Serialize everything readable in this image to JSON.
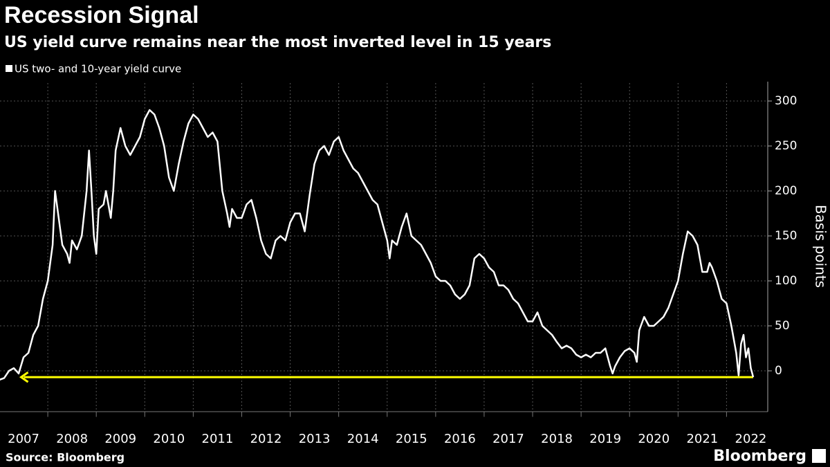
{
  "chart_data": {
    "type": "line",
    "title": "Recession Signal",
    "subtitle": "US yield curve remains near the most inverted level in 15 years",
    "y_axis_label": "Basis points",
    "source": "Source: Bloomberg",
    "logo": "Bloomberg",
    "grid": true,
    "xlim": [
      2007,
      2022.85
    ],
    "xticks": [
      2007,
      2008,
      2009,
      2010,
      2011,
      2012,
      2013,
      2014,
      2015,
      2016,
      2017,
      2018,
      2019,
      2020,
      2021,
      2022
    ],
    "ylim": [
      -45,
      320
    ],
    "yticks": [
      0,
      50,
      100,
      150,
      200,
      250,
      300
    ],
    "annotation_arrow": {
      "y": -7,
      "x": [
        2022.55,
        2007.45
      ],
      "color": "#ffff00"
    },
    "series": [
      {
        "name": "US two- and 10-year yield curve",
        "color": "#ffffff",
        "x": [
          2007.0,
          2007.1,
          2007.2,
          2007.3,
          2007.4,
          2007.5,
          2007.6,
          2007.7,
          2007.8,
          2007.9,
          2008.0,
          2008.1,
          2008.15,
          2008.2,
          2008.3,
          2008.4,
          2008.45,
          2008.5,
          2008.6,
          2008.7,
          2008.8,
          2008.85,
          2008.9,
          2008.95,
          2009.0,
          2009.05,
          2009.15,
          2009.2,
          2009.3,
          2009.35,
          2009.4,
          2009.5,
          2009.6,
          2009.7,
          2009.8,
          2009.9,
          2010.0,
          2010.1,
          2010.2,
          2010.3,
          2010.4,
          2010.5,
          2010.6,
          2010.7,
          2010.8,
          2010.9,
          2011.0,
          2011.1,
          2011.2,
          2011.3,
          2011.4,
          2011.5,
          2011.6,
          2011.7,
          2011.75,
          2011.8,
          2011.9,
          2012.0,
          2012.1,
          2012.2,
          2012.3,
          2012.4,
          2012.5,
          2012.6,
          2012.7,
          2012.8,
          2012.9,
          2013.0,
          2013.1,
          2013.2,
          2013.3,
          2013.4,
          2013.5,
          2013.6,
          2013.7,
          2013.8,
          2013.9,
          2014.0,
          2014.1,
          2014.2,
          2014.3,
          2014.4,
          2014.5,
          2014.6,
          2014.7,
          2014.8,
          2014.9,
          2015.0,
          2015.05,
          2015.1,
          2015.2,
          2015.3,
          2015.4,
          2015.5,
          2015.6,
          2015.7,
          2015.8,
          2015.9,
          2016.0,
          2016.1,
          2016.2,
          2016.3,
          2016.4,
          2016.5,
          2016.6,
          2016.7,
          2016.8,
          2016.9,
          2017.0,
          2017.1,
          2017.2,
          2017.3,
          2017.4,
          2017.5,
          2017.6,
          2017.7,
          2017.8,
          2017.9,
          2018.0,
          2018.1,
          2018.2,
          2018.3,
          2018.4,
          2018.5,
          2018.6,
          2018.7,
          2018.8,
          2018.9,
          2019.0,
          2019.1,
          2019.2,
          2019.3,
          2019.4,
          2019.5,
          2019.55,
          2019.6,
          2019.65,
          2019.7,
          2019.8,
          2019.9,
          2020.0,
          2020.1,
          2020.15,
          2020.2,
          2020.3,
          2020.4,
          2020.5,
          2020.6,
          2020.7,
          2020.8,
          2020.9,
          2021.0,
          2021.1,
          2021.2,
          2021.3,
          2021.4,
          2021.5,
          2021.6,
          2021.65,
          2021.7,
          2021.8,
          2021.9,
          2022.0,
          2022.1,
          2022.2,
          2022.25,
          2022.3,
          2022.35,
          2022.4,
          2022.45,
          2022.5,
          2022.55
        ],
        "values": [
          -10,
          -8,
          0,
          3,
          -3,
          15,
          20,
          40,
          50,
          80,
          100,
          140,
          200,
          180,
          140,
          130,
          120,
          145,
          135,
          150,
          200,
          245,
          200,
          150,
          130,
          180,
          185,
          200,
          170,
          200,
          245,
          270,
          250,
          240,
          250,
          260,
          280,
          290,
          285,
          270,
          250,
          215,
          200,
          230,
          255,
          275,
          285,
          280,
          270,
          260,
          265,
          255,
          200,
          175,
          160,
          180,
          170,
          170,
          185,
          190,
          170,
          145,
          130,
          125,
          145,
          150,
          145,
          165,
          175,
          175,
          155,
          195,
          230,
          245,
          250,
          240,
          255,
          260,
          245,
          235,
          225,
          220,
          210,
          200,
          190,
          185,
          165,
          145,
          125,
          145,
          140,
          160,
          175,
          150,
          145,
          140,
          130,
          120,
          105,
          100,
          100,
          95,
          85,
          80,
          85,
          95,
          125,
          130,
          125,
          115,
          110,
          95,
          95,
          90,
          80,
          75,
          65,
          55,
          55,
          65,
          50,
          45,
          40,
          32,
          25,
          28,
          25,
          18,
          15,
          18,
          15,
          20,
          20,
          25,
          15,
          5,
          -3,
          5,
          15,
          22,
          25,
          20,
          10,
          45,
          60,
          50,
          50,
          55,
          60,
          70,
          85,
          100,
          130,
          155,
          150,
          140,
          110,
          110,
          120,
          115,
          100,
          80,
          75,
          50,
          20,
          -5,
          30,
          40,
          15,
          25,
          3,
          -7
        ]
      }
    ]
  }
}
